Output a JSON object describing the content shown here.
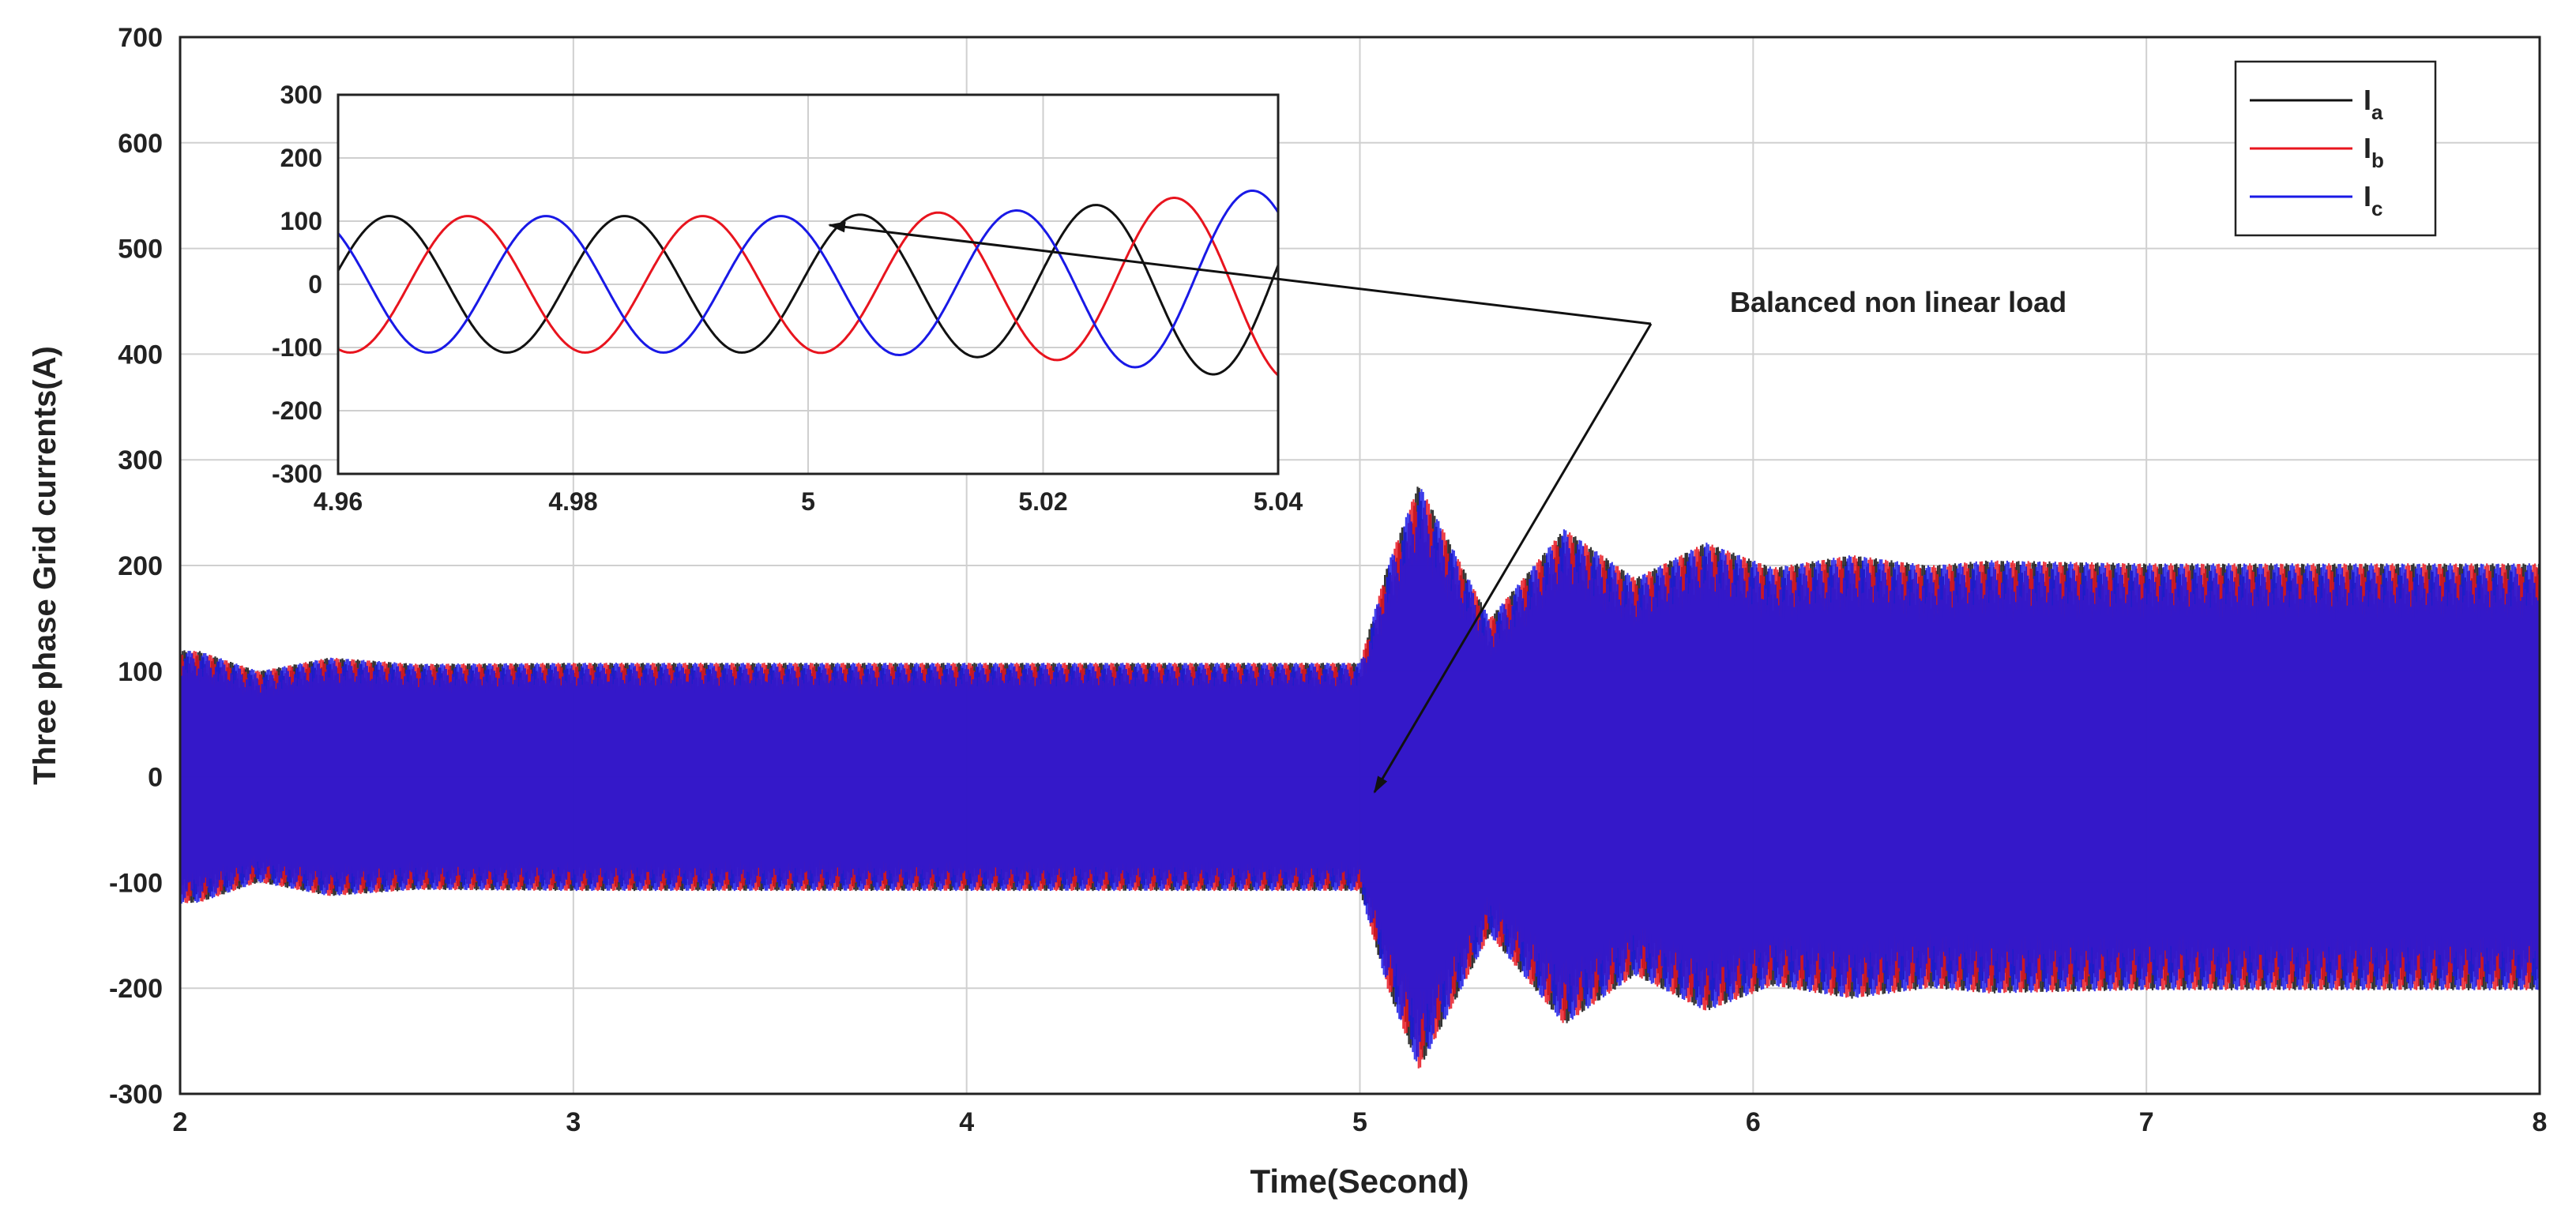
{
  "chart_data": {
    "type": "line",
    "title": "",
    "xlabel": "Time(Second)",
    "ylabel": "Three phase Grid currents(A)",
    "xlim": [
      2,
      8
    ],
    "ylim": [
      -300,
      700
    ],
    "xticks": [
      2,
      3,
      4,
      5,
      6,
      7,
      8
    ],
    "yticks": [
      -300,
      -200,
      -100,
      0,
      100,
      200,
      300,
      400,
      500,
      600,
      700
    ],
    "grid": true,
    "legend": {
      "position": "top-right",
      "entries": [
        {
          "label": "I",
          "subscript": "a",
          "color": "#111111"
        },
        {
          "label": "I",
          "subscript": "b",
          "color": "#e8141e"
        },
        {
          "label": "I",
          "subscript": "c",
          "color": "#1919e6"
        }
      ]
    },
    "series": [
      {
        "name": "Ia",
        "color": "#111111",
        "frequency_hz": 50,
        "phase_deg": 0
      },
      {
        "name": "Ib",
        "color": "#e8141e",
        "frequency_hz": 50,
        "phase_deg": -120
      },
      {
        "name": "Ic",
        "color": "#1919e6",
        "frequency_hz": 50,
        "phase_deg": 120
      }
    ],
    "envelope": {
      "t": [
        2,
        2.05,
        2.2,
        2.38,
        2.6,
        3,
        4,
        5,
        5.07,
        5.15,
        5.33,
        5.52,
        5.7,
        5.88,
        6.05,
        6.25,
        6.45,
        6.6,
        7,
        8
      ],
      "amplitude": [
        120,
        119,
        100,
        113,
        107,
        108,
        108,
        108,
        200,
        278,
        150,
        235,
        188,
        222,
        198,
        210,
        200,
        205,
        202,
        202
      ]
    },
    "annotation": {
      "text": "Balanced non linear load",
      "targets": [
        {
          "x": 5.0,
          "y": 0
        },
        {
          "x": 5.0,
          "y": 105
        }
      ]
    },
    "inset": {
      "xlim": [
        4.96,
        5.04
      ],
      "ylim": [
        -300,
        300
      ],
      "xticks": [
        4.96,
        4.98,
        5,
        5.02,
        5.04
      ],
      "xtick_labels": [
        "4.96",
        "4.98",
        "5",
        "5.02",
        "5.04"
      ],
      "yticks": [
        -300,
        -200,
        -100,
        0,
        100,
        200,
        300
      ],
      "grid": true,
      "amplitude_before": 108,
      "amplitude_after": [
        {
          "t": 5.0,
          "a": 108
        },
        {
          "t": 5.02,
          "a": 118
        },
        {
          "t": 5.04,
          "a": 152
        }
      ]
    }
  }
}
